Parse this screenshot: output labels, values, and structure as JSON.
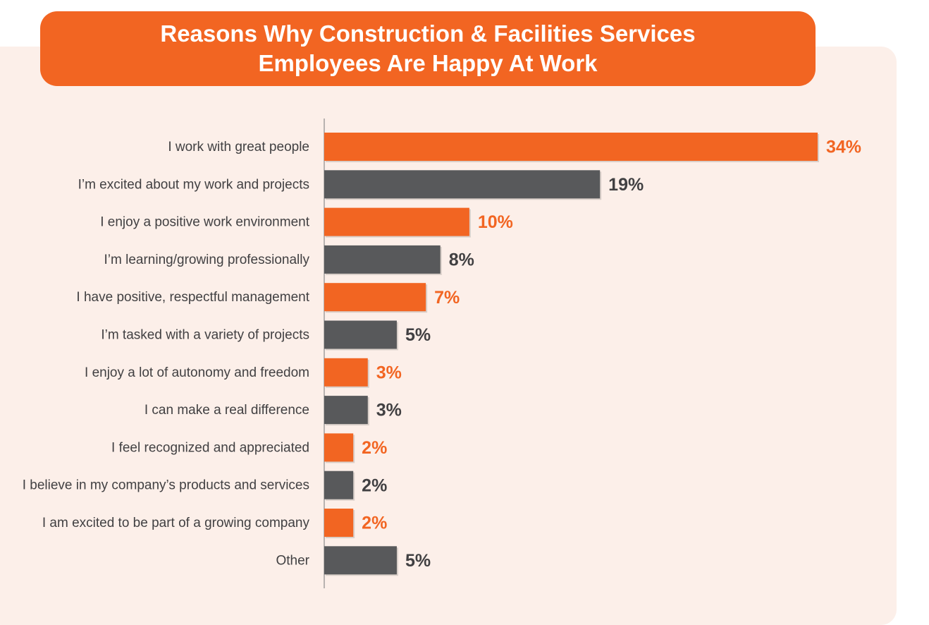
{
  "chart_data": {
    "type": "bar",
    "orientation": "horizontal",
    "title_lines": [
      "Reasons Why Construction & Facilities Services",
      "Employees Are Happy At Work"
    ],
    "categories": [
      "I work with great people",
      "I’m excited about my work and projects",
      "I enjoy a positive work environment",
      "I’m learning/growing professionally",
      "I have positive, respectful management",
      "I’m tasked with a variety of projects",
      "I enjoy a lot of autonomy and freedom",
      "I can make a real difference",
      "I feel recognized and appreciated",
      "I believe in my company’s products and services",
      "I am excited to be part of a growing company",
      "Other"
    ],
    "values": [
      34,
      19,
      10,
      8,
      7,
      5,
      3,
      3,
      2,
      2,
      2,
      5
    ],
    "value_labels": [
      "34%",
      "19%",
      "10%",
      "8%",
      "7%",
      "5%",
      "3%",
      "3%",
      "2%",
      "2%",
      "2%",
      "5%"
    ],
    "xlim": [
      0,
      34
    ],
    "legend": "none",
    "grid": false,
    "colors": {
      "orange": "#f26522",
      "gray": "#58595b",
      "axis": "#8a8a8a",
      "label": "#414042"
    }
  }
}
